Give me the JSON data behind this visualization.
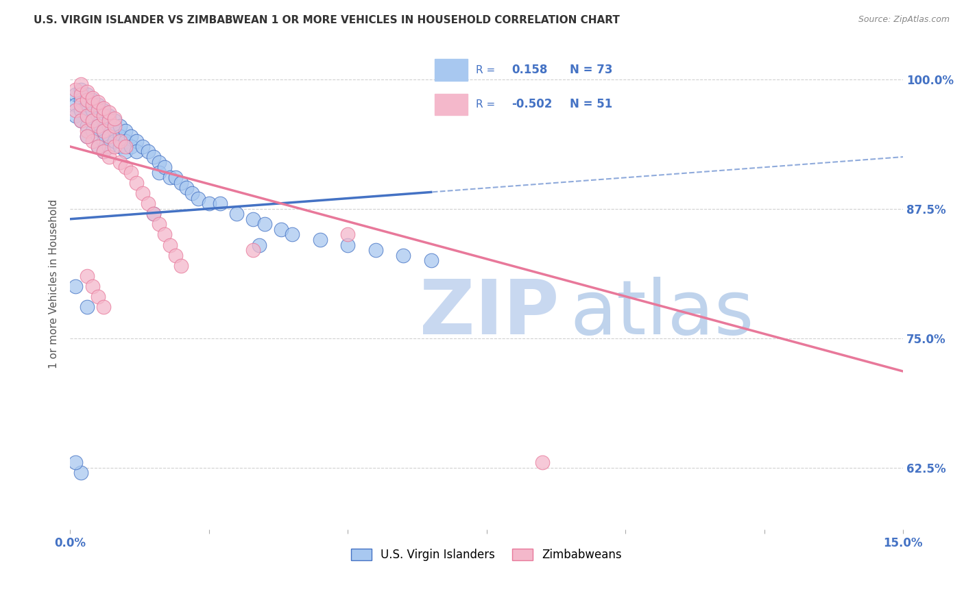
{
  "title": "U.S. VIRGIN ISLANDER VS ZIMBABWEAN 1 OR MORE VEHICLES IN HOUSEHOLD CORRELATION CHART",
  "source": "Source: ZipAtlas.com",
  "ylabel_label": "1 or more Vehicles in Household",
  "ytick_labels": [
    "62.5%",
    "75.0%",
    "87.5%",
    "100.0%"
  ],
  "ytick_values": [
    0.625,
    0.75,
    0.875,
    1.0
  ],
  "xmin": 0.0,
  "xmax": 0.15,
  "ymin": 0.565,
  "ymax": 1.04,
  "r_vi": 0.158,
  "n_vi": 73,
  "r_zim": -0.502,
  "n_zim": 51,
  "vi_line_x0": 0.0,
  "vi_line_y0": 0.865,
  "vi_line_x1": 0.15,
  "vi_line_y1": 0.925,
  "zim_line_x0": 0.0,
  "zim_line_y0": 0.935,
  "zim_line_x1": 0.15,
  "zim_line_y1": 0.718,
  "color_vi": "#A8C8F0",
  "color_vi_line": "#4472C4",
  "color_zim": "#F4B8CB",
  "color_zim_line": "#E8789A",
  "color_title": "#333333",
  "color_source": "#888888",
  "color_axis_label": "#4472C4",
  "color_ytick": "#4472C4",
  "watermark_zip_color": "#C8D8F0",
  "watermark_atlas_color": "#B0C8E8",
  "legend_r_color": "#4472C4",
  "grid_color": "#D0D0D0",
  "legend_box_color": "#E8E8E8",
  "vi_x": [
    0.001,
    0.001,
    0.001,
    0.002,
    0.002,
    0.002,
    0.002,
    0.003,
    0.003,
    0.003,
    0.003,
    0.003,
    0.004,
    0.004,
    0.004,
    0.004,
    0.005,
    0.005,
    0.005,
    0.005,
    0.005,
    0.006,
    0.006,
    0.006,
    0.006,
    0.006,
    0.007,
    0.007,
    0.007,
    0.007,
    0.008,
    0.008,
    0.008,
    0.009,
    0.009,
    0.009,
    0.01,
    0.01,
    0.01,
    0.011,
    0.011,
    0.012,
    0.012,
    0.013,
    0.014,
    0.015,
    0.015,
    0.016,
    0.016,
    0.017,
    0.018,
    0.019,
    0.02,
    0.021,
    0.022,
    0.023,
    0.025,
    0.027,
    0.03,
    0.033,
    0.035,
    0.038,
    0.04,
    0.045,
    0.05,
    0.055,
    0.06,
    0.065,
    0.001,
    0.002,
    0.003,
    0.001,
    0.034
  ],
  "vi_y": [
    0.985,
    0.975,
    0.965,
    0.99,
    0.98,
    0.97,
    0.96,
    0.985,
    0.975,
    0.965,
    0.955,
    0.945,
    0.98,
    0.97,
    0.96,
    0.95,
    0.975,
    0.965,
    0.955,
    0.945,
    0.935,
    0.97,
    0.96,
    0.95,
    0.94,
    0.93,
    0.965,
    0.955,
    0.945,
    0.935,
    0.96,
    0.95,
    0.94,
    0.955,
    0.945,
    0.935,
    0.95,
    0.94,
    0.93,
    0.945,
    0.935,
    0.94,
    0.93,
    0.935,
    0.93,
    0.925,
    0.87,
    0.92,
    0.91,
    0.915,
    0.905,
    0.905,
    0.9,
    0.895,
    0.89,
    0.885,
    0.88,
    0.88,
    0.87,
    0.865,
    0.86,
    0.855,
    0.85,
    0.845,
    0.84,
    0.835,
    0.83,
    0.825,
    0.8,
    0.62,
    0.78,
    0.63,
    0.84
  ],
  "zim_x": [
    0.001,
    0.001,
    0.002,
    0.002,
    0.002,
    0.003,
    0.003,
    0.003,
    0.004,
    0.004,
    0.004,
    0.005,
    0.005,
    0.005,
    0.006,
    0.006,
    0.006,
    0.007,
    0.007,
    0.007,
    0.008,
    0.008,
    0.009,
    0.009,
    0.01,
    0.01,
    0.011,
    0.012,
    0.013,
    0.014,
    0.015,
    0.016,
    0.017,
    0.018,
    0.019,
    0.02,
    0.002,
    0.003,
    0.004,
    0.005,
    0.006,
    0.007,
    0.008,
    0.003,
    0.004,
    0.005,
    0.006,
    0.033,
    0.05,
    0.085,
    0.003
  ],
  "zim_y": [
    0.99,
    0.97,
    0.985,
    0.975,
    0.96,
    0.98,
    0.965,
    0.95,
    0.975,
    0.96,
    0.94,
    0.97,
    0.955,
    0.935,
    0.965,
    0.95,
    0.93,
    0.96,
    0.945,
    0.925,
    0.955,
    0.935,
    0.94,
    0.92,
    0.935,
    0.915,
    0.91,
    0.9,
    0.89,
    0.88,
    0.87,
    0.86,
    0.85,
    0.84,
    0.83,
    0.82,
    0.995,
    0.988,
    0.982,
    0.978,
    0.972,
    0.968,
    0.962,
    0.81,
    0.8,
    0.79,
    0.78,
    0.835,
    0.85,
    0.63,
    0.945
  ]
}
